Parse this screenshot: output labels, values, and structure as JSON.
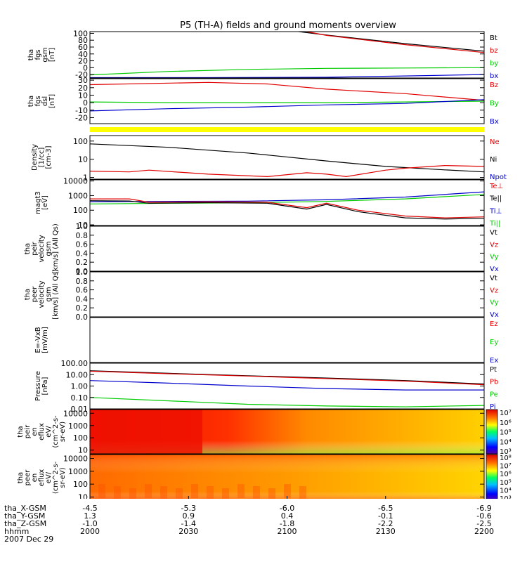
{
  "title": "P5 (TH-A) fields and ground moments overview",
  "footer": {
    "rows": [
      {
        "label": "tha_X-GSM",
        "values": [
          "-4.5",
          "-5.3",
          "-6.0",
          "-6.5",
          "-6.9"
        ]
      },
      {
        "label": "tha_Y-GSM",
        "values": [
          "1.3",
          "0.9",
          "0.4",
          "-0.1",
          "-0.6"
        ]
      },
      {
        "label": "tha_Z-GSM",
        "values": [
          "-1.0",
          "-1.4",
          "-1.8",
          "-2.2",
          "-2.5"
        ]
      },
      {
        "label": "hhmm",
        "values": [
          "2000",
          "2030",
          "2100",
          "2130",
          "2200"
        ]
      }
    ],
    "date": "2007 Dec 29"
  },
  "colors": {
    "red": "#e00000",
    "green": "#00cc00",
    "blue": "#0000cc",
    "black": "#000000",
    "yellow": "#ffff00"
  },
  "chart_data": {
    "type": "line",
    "x_range": [
      "2000",
      "2200"
    ],
    "panels": [
      {
        "id": "fgs_gsm",
        "ylabel": [
          "tha",
          "fgs",
          "gsm",
          "[nT]"
        ],
        "scale": "linear",
        "ylim": [
          -30,
          105
        ],
        "ticks": [
          "100",
          "80",
          "60",
          "40",
          "20",
          "0",
          "-20"
        ],
        "tick_values": [
          100,
          80,
          60,
          40,
          20,
          0,
          -20
        ],
        "legend": [
          {
            "label": "Bt",
            "color": "#000000"
          },
          {
            "label": "bz",
            "color": "#e00000"
          },
          {
            "label": "by",
            "color": "#00cc00"
          },
          {
            "label": "bx",
            "color": "#0000cc"
          }
        ],
        "series": [
          {
            "name": "Bt",
            "color": "#000000",
            "points": [
              [
                0.53,
                105
              ],
              [
                0.6,
                95
              ],
              [
                0.8,
                70
              ],
              [
                1.0,
                48
              ]
            ]
          },
          {
            "name": "bz",
            "color": "#e00000",
            "points": [
              [
                0.55,
                105
              ],
              [
                0.6,
                94
              ],
              [
                0.8,
                67
              ],
              [
                1.0,
                44
              ]
            ]
          },
          {
            "name": "by",
            "color": "#00cc00",
            "points": [
              [
                0,
                -21
              ],
              [
                0.2,
                -11
              ],
              [
                0.4,
                -5
              ],
              [
                0.6,
                -2
              ],
              [
                0.8,
                -1
              ],
              [
                1.0,
                0
              ]
            ]
          },
          {
            "name": "bx",
            "color": "#0000cc",
            "points": [
              [
                0,
                -29
              ],
              [
                0.3,
                -29
              ],
              [
                0.6,
                -28
              ],
              [
                0.8,
                -24
              ],
              [
                1.0,
                -20
              ]
            ]
          }
        ]
      },
      {
        "id": "fgs_dsl",
        "ylabel": [
          "tha",
          "fgs",
          "dsl",
          "[nT]"
        ],
        "scale": "linear",
        "ylim": [
          -28,
          32
        ],
        "ticks": [
          "30",
          "20",
          "10",
          "0",
          "-10",
          "-20"
        ],
        "tick_values": [
          30,
          20,
          10,
          0,
          -10,
          -20
        ],
        "legend": [
          {
            "label": "Bz",
            "color": "#e00000"
          },
          {
            "label": "By",
            "color": "#00cc00"
          },
          {
            "label": "Bx",
            "color": "#0000cc"
          }
        ],
        "series": [
          {
            "name": "Bz",
            "color": "#e00000",
            "points": [
              [
                0,
                24
              ],
              [
                0.3,
                27
              ],
              [
                0.45,
                25
              ],
              [
                0.6,
                18
              ],
              [
                0.8,
                12
              ],
              [
                1.0,
                3
              ]
            ]
          },
          {
            "name": "By",
            "color": "#00cc00",
            "points": [
              [
                0,
                1
              ],
              [
                0.2,
                0
              ],
              [
                0.4,
                0
              ],
              [
                0.6,
                0
              ],
              [
                0.8,
                1
              ],
              [
                1.0,
                2
              ]
            ]
          },
          {
            "name": "Bx",
            "color": "#0000cc",
            "points": [
              [
                0,
                -11
              ],
              [
                0.2,
                -8
              ],
              [
                0.4,
                -6
              ],
              [
                0.6,
                -3
              ],
              [
                0.8,
                -1
              ],
              [
                1.0,
                4
              ]
            ]
          }
        ]
      },
      {
        "id": "density",
        "ylabel": [
          "Density",
          "[1/cc]",
          "[cm-3]"
        ],
        "scale": "log",
        "ylim": [
          0.8,
          200
        ],
        "ticks": [
          "100",
          "10",
          "1"
        ],
        "tick_values": [
          100,
          10,
          1
        ],
        "legend": [
          {
            "label": "Ne",
            "color": "#e00000"
          },
          {
            "label": "Ni",
            "color": "#000000"
          },
          {
            "label": "Npot",
            "color": "#0000cc"
          }
        ],
        "series": [
          {
            "name": "Ni",
            "color": "#000000",
            "points": [
              [
                0,
                70
              ],
              [
                0.2,
                45
              ],
              [
                0.4,
                22
              ],
              [
                0.6,
                8
              ],
              [
                0.75,
                4
              ],
              [
                0.9,
                2.6
              ],
              [
                1.0,
                2.0
              ]
            ]
          },
          {
            "name": "Ne",
            "color": "#e00000",
            "points": [
              [
                0,
                2.2
              ],
              [
                0.1,
                2.0
              ],
              [
                0.15,
                2.5
              ],
              [
                0.3,
                1.5
              ],
              [
                0.45,
                1.1
              ],
              [
                0.55,
                1.8
              ],
              [
                0.6,
                1.5
              ],
              [
                0.65,
                1.1
              ],
              [
                0.75,
                2.5
              ],
              [
                0.8,
                3.2
              ],
              [
                0.9,
                4.5
              ],
              [
                1.0,
                4.0
              ]
            ]
          }
        ]
      },
      {
        "id": "temperature",
        "ylabel": [
          "magt3",
          "[eV]"
        ],
        "scale": "log",
        "ylim": [
          9,
          12000
        ],
        "ticks": [
          "10000",
          "1000",
          "100",
          "10"
        ],
        "tick_values": [
          10000,
          1000,
          100,
          10
        ],
        "legend": [
          {
            "label": "Te⊥",
            "color": "#e00000"
          },
          {
            "label": "Te||",
            "color": "#000000"
          },
          {
            "label": "Ti⊥",
            "color": "#0000cc"
          },
          {
            "label": "Ti||",
            "color": "#00cc00"
          }
        ],
        "series": [
          {
            "name": "Ti_perp",
            "color": "#0000cc",
            "points": [
              [
                0,
                380
              ],
              [
                0.2,
                400
              ],
              [
                0.4,
                420
              ],
              [
                0.6,
                520
              ],
              [
                0.8,
                800
              ],
              [
                1.0,
                1800
              ]
            ]
          },
          {
            "name": "Ti_par",
            "color": "#00cc00",
            "points": [
              [
                0,
                270
              ],
              [
                0.2,
                300
              ],
              [
                0.4,
                320
              ],
              [
                0.6,
                400
              ],
              [
                0.8,
                600
              ],
              [
                1.0,
                1200
              ]
            ]
          },
          {
            "name": "Te_perp",
            "color": "#e00000",
            "points": [
              [
                0,
                600
              ],
              [
                0.1,
                600
              ],
              [
                0.15,
                350
              ],
              [
                0.3,
                380
              ],
              [
                0.45,
                350
              ],
              [
                0.55,
                150
              ],
              [
                0.6,
                300
              ],
              [
                0.68,
                100
              ],
              [
                0.8,
                40
              ],
              [
                0.9,
                30
              ],
              [
                1.0,
                35
              ]
            ]
          },
          {
            "name": "Te_par",
            "color": "#000000",
            "points": [
              [
                0,
                450
              ],
              [
                0.1,
                430
              ],
              [
                0.15,
                300
              ],
              [
                0.3,
                330
              ],
              [
                0.45,
                300
              ],
              [
                0.55,
                120
              ],
              [
                0.6,
                250
              ],
              [
                0.68,
                80
              ],
              [
                0.8,
                30
              ],
              [
                0.9,
                25
              ],
              [
                1.0,
                28
              ]
            ]
          }
        ]
      },
      {
        "id": "peir_velocity",
        "ylabel": [
          "tha",
          "peir",
          "velocity",
          "gsm",
          "[km/s] (All Qs)"
        ],
        "scale": "linear",
        "ylim": [
          0,
          1
        ],
        "ticks": [
          "1.0",
          "0.8",
          "0.6",
          "0.4",
          "0.2",
          "0.0"
        ],
        "tick_values": [
          1,
          0.8,
          0.6,
          0.4,
          0.2,
          0
        ],
        "legend": [
          {
            "label": "Vt",
            "color": "#000000"
          },
          {
            "label": "Vz",
            "color": "#e00000"
          },
          {
            "label": "Vy",
            "color": "#00cc00"
          },
          {
            "label": "Vx",
            "color": "#0000cc"
          }
        ],
        "series": []
      },
      {
        "id": "peer_velocity",
        "ylabel": [
          "tha",
          "peer",
          "velocity",
          "gsm",
          "[km/s] (All Qs)"
        ],
        "scale": "linear",
        "ylim": [
          0,
          1
        ],
        "ticks": [
          "1.0",
          "0.8",
          "0.6",
          "0.4",
          "0.2",
          "0.0"
        ],
        "tick_values": [
          1,
          0.8,
          0.6,
          0.4,
          0.2,
          0
        ],
        "legend": [
          {
            "label": "Vt",
            "color": "#000000"
          },
          {
            "label": "Vz",
            "color": "#e00000"
          },
          {
            "label": "Vy",
            "color": "#00cc00"
          },
          {
            "label": "Vx",
            "color": "#0000cc"
          }
        ],
        "series": []
      },
      {
        "id": "efield",
        "ylabel": [
          "E=-VxB",
          "[mV/m]"
        ],
        "scale": "linear",
        "ylim": [
          0,
          1
        ],
        "ticks": [],
        "tick_values": [],
        "legend": [
          {
            "label": "Ez",
            "color": "#e00000"
          },
          {
            "label": "Ey",
            "color": "#00cc00"
          },
          {
            "label": "Ex",
            "color": "#0000cc"
          }
        ],
        "series": []
      },
      {
        "id": "pressure",
        "ylabel": [
          "Pressure",
          "[nPa]"
        ],
        "scale": "log",
        "ylim": [
          0.01,
          100
        ],
        "ticks": [
          "100.00",
          "10.00",
          "1.00",
          "0.10",
          "0.01"
        ],
        "tick_values": [
          100,
          10,
          1,
          0.1,
          0.01
        ],
        "legend": [
          {
            "label": "Pt",
            "color": "#000000"
          },
          {
            "label": "Pb",
            "color": "#e00000"
          },
          {
            "label": "Pe",
            "color": "#00cc00"
          },
          {
            "label": "Pi",
            "color": "#0000cc"
          }
        ],
        "series": [
          {
            "name": "Pt",
            "color": "#000000",
            "points": [
              [
                0,
                22
              ],
              [
                0.2,
                13
              ],
              [
                0.4,
                8
              ],
              [
                0.6,
                5
              ],
              [
                0.8,
                3
              ],
              [
                1.0,
                1.5
              ]
            ]
          },
          {
            "name": "Pb",
            "color": "#e00000",
            "points": [
              [
                0,
                20
              ],
              [
                0.2,
                12
              ],
              [
                0.4,
                7.5
              ],
              [
                0.6,
                4.5
              ],
              [
                0.8,
                2.7
              ],
              [
                1.0,
                1.3
              ]
            ]
          },
          {
            "name": "Pi",
            "color": "#0000cc",
            "points": [
              [
                0,
                3
              ],
              [
                0.2,
                1.8
              ],
              [
                0.4,
                1.0
              ],
              [
                0.6,
                0.6
              ],
              [
                0.8,
                0.45
              ],
              [
                1.0,
                0.45
              ]
            ]
          },
          {
            "name": "Pe",
            "color": "#00cc00",
            "points": [
              [
                0,
                0.1
              ],
              [
                0.2,
                0.05
              ],
              [
                0.4,
                0.025
              ],
              [
                0.6,
                0.018
              ],
              [
                0.8,
                0.015
              ],
              [
                1.0,
                0.02
              ]
            ]
          }
        ]
      },
      {
        "id": "peir_eflux",
        "type": "heatmap",
        "ylabel": [
          "tha",
          "peir",
          "en",
          "eflux",
          "eV/",
          "(cm^2-s-",
          "sr-eV)"
        ],
        "scale": "log",
        "ylim": [
          5,
          20000
        ],
        "ticks": [
          "10000",
          "1000",
          "100",
          "10"
        ],
        "tick_values": [
          10000,
          1000,
          100,
          10
        ],
        "colorbar": {
          "min": "10^3",
          "max": "10^7",
          "labels": [
            "10⁷",
            "10⁶",
            "10⁵",
            "10⁴",
            "10³"
          ]
        }
      },
      {
        "id": "peer_eflux",
        "type": "heatmap",
        "ylabel": [
          "tha",
          "peer",
          "en",
          "eflux",
          "eV/",
          "(cm^2-s-",
          "sr-eV)"
        ],
        "scale": "log",
        "ylim": [
          5,
          20000
        ],
        "ticks": [
          "10000",
          "1000",
          "100",
          "10"
        ],
        "tick_values": [
          10000,
          1000,
          100,
          10
        ],
        "colorbar": {
          "min": "10^3",
          "max": "10^8",
          "labels": [
            "10⁸",
            "10⁷",
            "10⁶",
            "10⁵",
            "10⁴",
            "10³"
          ]
        }
      }
    ]
  }
}
